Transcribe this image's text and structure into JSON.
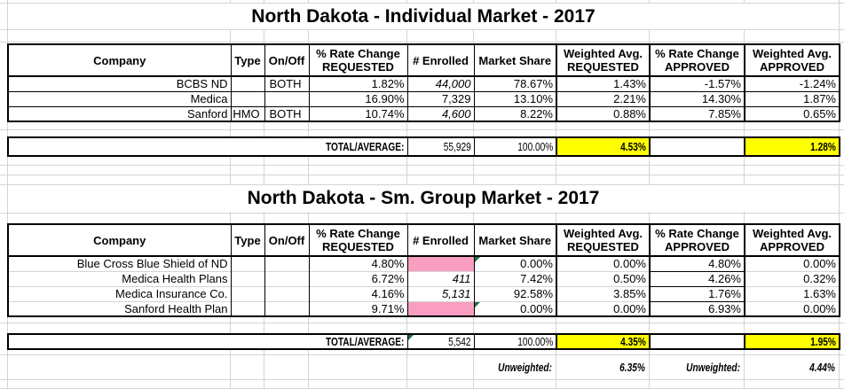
{
  "columns": [
    {
      "label": "Company"
    },
    {
      "label": "Type"
    },
    {
      "label": "On/Off"
    },
    {
      "label": "% Rate Change",
      "label2": "REQUESTED"
    },
    {
      "label": "# Enrolled"
    },
    {
      "label": "Market Share"
    },
    {
      "label": "Weighted Avg.",
      "label2": "REQUESTED"
    },
    {
      "label": "% Rate Change",
      "label2": "APPROVED"
    },
    {
      "label": "Weighted Avg.",
      "label2": "APPROVED"
    }
  ],
  "individual": {
    "title": "North Dakota - Individual Market - 2017",
    "rows": [
      {
        "company": "BCBS ND",
        "type": "",
        "onoff": "BOTH",
        "rate_requested": "1.82%",
        "enrolled": "44,000",
        "enrolled_italic": true,
        "market_share": "78.67%",
        "wavg_requested": "1.43%",
        "rate_approved": "-1.57%",
        "wavg_approved": "-1.24%"
      },
      {
        "company": "Medica",
        "type": "",
        "onoff": "",
        "rate_requested": "16.90%",
        "enrolled": "7,329",
        "market_share": "13.10%",
        "wavg_requested": "2.21%",
        "rate_approved": "14.30%",
        "wavg_approved": "1.87%"
      },
      {
        "company": "Sanford",
        "type": "HMO",
        "onoff": "BOTH",
        "rate_requested": "10.74%",
        "enrolled": "4,600",
        "enrolled_italic": true,
        "market_share": "8.22%",
        "wavg_requested": "0.88%",
        "rate_approved": "7.85%",
        "wavg_approved": "0.65%"
      }
    ],
    "total": {
      "label": "TOTAL/AVERAGE:",
      "enrolled": "55,929",
      "market_share": "100.00%",
      "wavg_requested": "4.53%",
      "rate_approved": "",
      "wavg_approved": "1.28%"
    }
  },
  "small_group": {
    "title": "North Dakota - Sm. Group Market - 2017",
    "rows": [
      {
        "company": "Blue Cross Blue Shield of ND",
        "type": "",
        "onoff": "",
        "rate_requested": "4.80%",
        "enrolled": "",
        "enrolled_pink": true,
        "market_share": "0.00%",
        "market_share_flag": true,
        "wavg_requested": "0.00%",
        "rate_approved": "4.80%",
        "wavg_approved": "0.00%"
      },
      {
        "company": "Medica Health Plans",
        "type": "",
        "onoff": "",
        "rate_requested": "6.72%",
        "enrolled": "411",
        "enrolled_italic": true,
        "market_share": "7.42%",
        "wavg_requested": "0.50%",
        "rate_approved": "4.26%",
        "wavg_approved": "0.32%"
      },
      {
        "company": "Medica Insurance Co.",
        "type": "",
        "onoff": "",
        "rate_requested": "4.16%",
        "enrolled": "5,131",
        "enrolled_italic": true,
        "market_share": "92.58%",
        "wavg_requested": "3.85%",
        "rate_approved": "1.76%",
        "wavg_approved": "1.63%"
      },
      {
        "company": "Sanford Health Plan",
        "type": "",
        "onoff": "",
        "rate_requested": "9.71%",
        "enrolled": "",
        "enrolled_pink": true,
        "market_share": "0.00%",
        "market_share_flag": true,
        "wavg_requested": "0.00%",
        "rate_approved": "6.93%",
        "wavg_approved": "0.00%"
      }
    ],
    "total": {
      "label": "TOTAL/AVERAGE:",
      "enrolled": "5,542",
      "enrolled_flag": true,
      "market_share": "100.00%",
      "wavg_requested": "4.35%",
      "rate_approved": "",
      "wavg_approved": "1.95%"
    }
  },
  "footer": {
    "unweighted_requested_label": "Unweighted:",
    "unweighted_requested_value": "6.35%",
    "unweighted_approved_label": "Unweighted:",
    "unweighted_approved_value": "4.44%"
  },
  "colors": {
    "highlight_yellow": "#FFFF00",
    "highlight_pink": "#FA9EC1",
    "flag_green": "#1E7145",
    "gridline_gray": "#D4D4D4"
  }
}
